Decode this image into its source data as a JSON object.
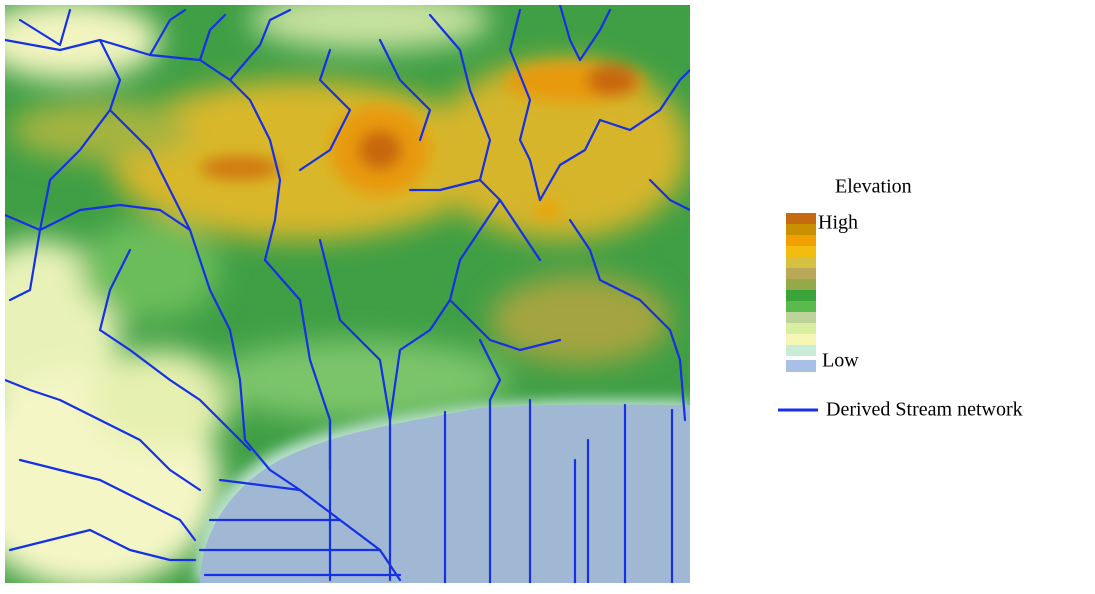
{
  "legend": {
    "title": "Elevation",
    "high_label": "High",
    "low_label": "Low",
    "stream_label": "Derived Stream network"
  }
}
